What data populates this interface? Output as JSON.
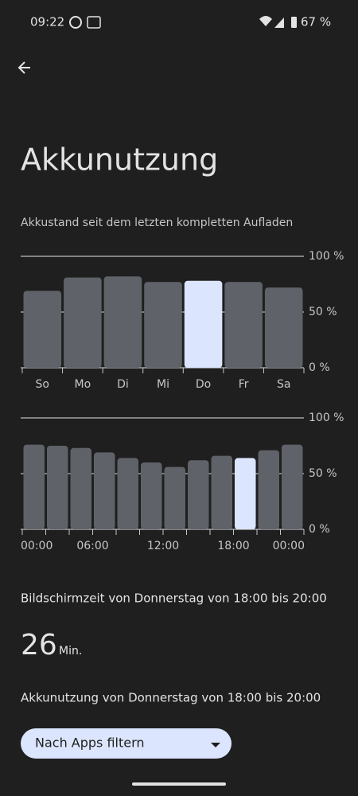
{
  "status_bar": {
    "time": "09:22",
    "battery": "67 %"
  },
  "title": "Akkunutzung",
  "subtitle": "Akkustand seit dem letzten kompletten Aufladen",
  "chart_data": [
    {
      "type": "bar",
      "categories": [
        "So",
        "Mo",
        "Di",
        "Mi",
        "Do",
        "Fr",
        "Sa"
      ],
      "values": [
        69,
        81,
        82,
        77,
        78,
        77,
        72
      ],
      "color": "#5f6268",
      "highlight_color": "#dbe5fd",
      "highlight_index": 4,
      "ylim": [
        0,
        100
      ],
      "yticks": [
        {
          "value": 0,
          "label": "0 %"
        },
        {
          "value": 50,
          "label": "50 %"
        },
        {
          "value": 100,
          "label": "100 %"
        }
      ],
      "grid": true
    },
    {
      "type": "timebar",
      "x": [
        0,
        2,
        4,
        6,
        8,
        10,
        12,
        14,
        16,
        18,
        20,
        22
      ],
      "values": [
        76,
        75,
        73,
        69,
        64,
        60,
        56,
        62,
        66,
        64,
        71,
        76
      ],
      "color": "#5f6268",
      "highlight_color": "#dbe5fd",
      "highlight_index": 9,
      "xlim": [
        0,
        24
      ],
      "xticks": [
        {
          "value": 0,
          "label": "00:00"
        },
        {
          "value": 6,
          "label": "06:00"
        },
        {
          "value": 12,
          "label": "12:00"
        },
        {
          "value": 18,
          "label": "18:00"
        },
        {
          "value": 24,
          "label": "00:00"
        }
      ],
      "ylim": [
        0,
        100
      ],
      "yticks": [
        {
          "value": 0,
          "label": "0 %"
        },
        {
          "value": 50,
          "label": "50 %"
        },
        {
          "value": 100,
          "label": "100 %"
        }
      ],
      "grid": true
    }
  ],
  "screen_time_heading": "Bildschirmzeit von Donnerstag von 18:00 bis 20:00",
  "screen_time_value": "26",
  "screen_time_unit": "Min.",
  "usage_heading": "Akkunutzung von Donnerstag von 18:00 bis 20:00",
  "filter_button": "Nach Apps filtern"
}
